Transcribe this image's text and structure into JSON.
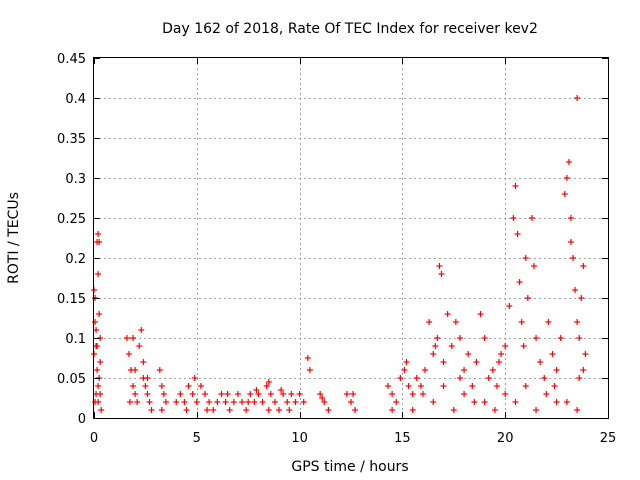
{
  "chart_data": {
    "type": "scatter",
    "title": "Day 162 of 2018, Rate Of TEC Index for receiver kev2",
    "xlabel": "GPS time / hours",
    "ylabel": "ROTI / TECUs",
    "xlim": [
      0,
      25
    ],
    "ylim": [
      0,
      0.45
    ],
    "grid": true,
    "marker": "+",
    "marker_color": "#ff0000",
    "x_ticks": [
      0,
      5,
      10,
      15,
      20,
      25
    ],
    "y_ticks": [
      0,
      0.05,
      0.1,
      0.15,
      0.2,
      0.25,
      0.3,
      0.35,
      0.4,
      0.45
    ],
    "x_tick_labels": [
      "0",
      "5",
      "10",
      "15",
      "20",
      "25"
    ],
    "y_tick_labels": [
      "0",
      "0.05",
      "0.1",
      "0.15",
      "0.2",
      "0.25",
      "0.3",
      "0.35",
      "0.4",
      "0.45"
    ],
    "series": [
      {
        "name": "ROTI",
        "points": [
          [
            0.0,
            0.16
          ],
          [
            0.05,
            0.12
          ],
          [
            0.1,
            0.09
          ],
          [
            0.15,
            0.06
          ],
          [
            0.2,
            0.04
          ],
          [
            0.1,
            0.03
          ],
          [
            0.05,
            0.02
          ],
          [
            0.0,
            0.08
          ],
          [
            0.15,
            0.22
          ],
          [
            0.2,
            0.23
          ],
          [
            0.25,
            0.22
          ],
          [
            0.2,
            0.18
          ],
          [
            0.3,
            0.07
          ],
          [
            0.25,
            0.05
          ],
          [
            0.3,
            0.03
          ],
          [
            0.2,
            0.02
          ],
          [
            0.35,
            0.01
          ],
          [
            0.1,
            0.11
          ],
          [
            0.25,
            0.13
          ],
          [
            0.05,
            0.15
          ],
          [
            0.15,
            0.09
          ],
          [
            0.3,
            0.1
          ],
          [
            1.6,
            0.1
          ],
          [
            1.7,
            0.08
          ],
          [
            1.8,
            0.06
          ],
          [
            1.9,
            0.04
          ],
          [
            2.0,
            0.03
          ],
          [
            2.1,
            0.02
          ],
          [
            1.75,
            0.02
          ],
          [
            2.2,
            0.09
          ],
          [
            2.3,
            0.11
          ],
          [
            2.4,
            0.05
          ],
          [
            2.5,
            0.04
          ],
          [
            2.6,
            0.03
          ],
          [
            2.7,
            0.02
          ],
          [
            2.8,
            0.01
          ],
          [
            2.0,
            0.06
          ],
          [
            2.4,
            0.07
          ],
          [
            1.9,
            0.1
          ],
          [
            2.6,
            0.05
          ],
          [
            3.2,
            0.06
          ],
          [
            3.3,
            0.04
          ],
          [
            3.4,
            0.03
          ],
          [
            3.5,
            0.02
          ],
          [
            3.3,
            0.01
          ],
          [
            4.0,
            0.02
          ],
          [
            4.2,
            0.03
          ],
          [
            4.4,
            0.02
          ],
          [
            4.6,
            0.04
          ],
          [
            4.8,
            0.03
          ],
          [
            5.0,
            0.02
          ],
          [
            5.2,
            0.04
          ],
          [
            5.4,
            0.03
          ],
          [
            5.6,
            0.02
          ],
          [
            5.8,
            0.01
          ],
          [
            6.0,
            0.02
          ],
          [
            6.2,
            0.03
          ],
          [
            6.4,
            0.02
          ],
          [
            6.6,
            0.01
          ],
          [
            6.8,
            0.02
          ],
          [
            7.0,
            0.03
          ],
          [
            7.2,
            0.02
          ],
          [
            7.4,
            0.01
          ],
          [
            7.6,
            0.03
          ],
          [
            7.8,
            0.02
          ],
          [
            8.0,
            0.03
          ],
          [
            8.2,
            0.02
          ],
          [
            8.4,
            0.04
          ],
          [
            8.6,
            0.03
          ],
          [
            8.8,
            0.02
          ],
          [
            9.0,
            0.01
          ],
          [
            9.2,
            0.03
          ],
          [
            9.4,
            0.02
          ],
          [
            9.6,
            0.03
          ],
          [
            9.8,
            0.02
          ],
          [
            10.0,
            0.03
          ],
          [
            10.2,
            0.02
          ],
          [
            4.5,
            0.01
          ],
          [
            5.5,
            0.01
          ],
          [
            6.5,
            0.03
          ],
          [
            7.5,
            0.02
          ],
          [
            8.5,
            0.01
          ],
          [
            9.5,
            0.01
          ],
          [
            4.9,
            0.05
          ],
          [
            8.5,
            0.045
          ],
          [
            9.1,
            0.035
          ],
          [
            7.9,
            0.035
          ],
          [
            10.4,
            0.075
          ],
          [
            10.5,
            0.06
          ],
          [
            11.0,
            0.03
          ],
          [
            11.2,
            0.02
          ],
          [
            11.4,
            0.01
          ],
          [
            11.1,
            0.025
          ],
          [
            12.3,
            0.03
          ],
          [
            12.5,
            0.02
          ],
          [
            12.7,
            0.01
          ],
          [
            12.6,
            0.03
          ],
          [
            14.3,
            0.04
          ],
          [
            14.5,
            0.03
          ],
          [
            14.7,
            0.02
          ],
          [
            14.9,
            0.05
          ],
          [
            15.1,
            0.06
          ],
          [
            15.3,
            0.04
          ],
          [
            15.5,
            0.03
          ],
          [
            15.7,
            0.05
          ],
          [
            15.9,
            0.04
          ],
          [
            16.1,
            0.06
          ],
          [
            16.3,
            0.12
          ],
          [
            16.5,
            0.08
          ],
          [
            16.7,
            0.1
          ],
          [
            16.8,
            0.19
          ],
          [
            16.9,
            0.18
          ],
          [
            17.0,
            0.07
          ],
          [
            17.2,
            0.13
          ],
          [
            17.4,
            0.09
          ],
          [
            17.6,
            0.12
          ],
          [
            17.8,
            0.1
          ],
          [
            18.0,
            0.06
          ],
          [
            18.2,
            0.08
          ],
          [
            18.4,
            0.04
          ],
          [
            18.6,
            0.07
          ],
          [
            18.8,
            0.13
          ],
          [
            19.0,
            0.1
          ],
          [
            19.2,
            0.05
          ],
          [
            19.4,
            0.06
          ],
          [
            19.6,
            0.04
          ],
          [
            19.8,
            0.08
          ],
          [
            20.0,
            0.09
          ],
          [
            20.2,
            0.14
          ],
          [
            20.4,
            0.25
          ],
          [
            20.5,
            0.29
          ],
          [
            20.6,
            0.23
          ],
          [
            20.7,
            0.17
          ],
          [
            20.8,
            0.12
          ],
          [
            21.0,
            0.2
          ],
          [
            21.1,
            0.15
          ],
          [
            21.3,
            0.25
          ],
          [
            21.4,
            0.19
          ],
          [
            21.5,
            0.1
          ],
          [
            21.7,
            0.07
          ],
          [
            21.9,
            0.05
          ],
          [
            22.1,
            0.12
          ],
          [
            22.3,
            0.08
          ],
          [
            22.5,
            0.06
          ],
          [
            22.7,
            0.1
          ],
          [
            22.9,
            0.28
          ],
          [
            23.0,
            0.3
          ],
          [
            23.1,
            0.32
          ],
          [
            23.2,
            0.25
          ],
          [
            23.3,
            0.2
          ],
          [
            23.4,
            0.16
          ],
          [
            23.5,
            0.12
          ],
          [
            23.6,
            0.1
          ],
          [
            23.7,
            0.15
          ],
          [
            23.8,
            0.19
          ],
          [
            23.9,
            0.08
          ],
          [
            23.5,
            0.4
          ],
          [
            23.2,
            0.22
          ],
          [
            23.6,
            0.05
          ],
          [
            14.5,
            0.01
          ],
          [
            15.5,
            0.01
          ],
          [
            16.5,
            0.02
          ],
          [
            17.5,
            0.01
          ],
          [
            18.5,
            0.02
          ],
          [
            19.5,
            0.01
          ],
          [
            20.5,
            0.02
          ],
          [
            21.5,
            0.01
          ],
          [
            22.5,
            0.02
          ],
          [
            23.5,
            0.01
          ],
          [
            16.0,
            0.03
          ],
          [
            17.0,
            0.04
          ],
          [
            18.0,
            0.03
          ],
          [
            19.0,
            0.02
          ],
          [
            20.0,
            0.03
          ],
          [
            21.0,
            0.04
          ],
          [
            22.0,
            0.03
          ],
          [
            23.0,
            0.02
          ],
          [
            15.2,
            0.07
          ],
          [
            16.6,
            0.09
          ],
          [
            17.8,
            0.05
          ],
          [
            19.7,
            0.07
          ],
          [
            20.9,
            0.09
          ],
          [
            22.4,
            0.04
          ],
          [
            23.8,
            0.06
          ]
        ]
      }
    ]
  }
}
